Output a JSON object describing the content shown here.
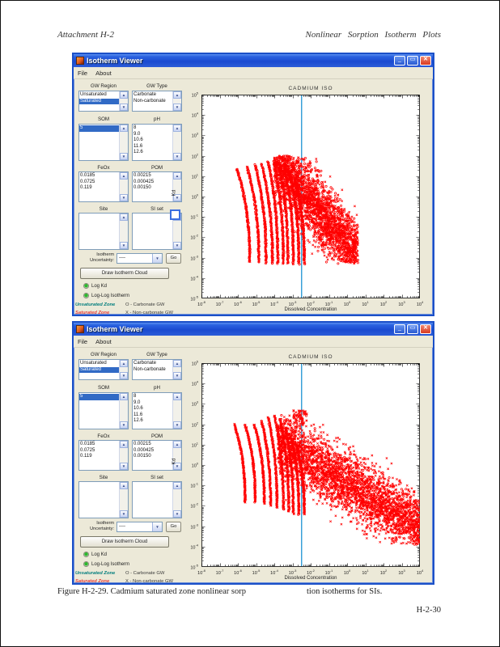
{
  "page": {
    "header_left": "Attachment H-2",
    "header_right": "Nonlinear Sorption Isotherm Plots",
    "caption_left": "Figure H-2-29. Cadmium saturated zone nonlinear sorp",
    "caption_right": "tion isotherms for SIs.",
    "page_number": "H-2-30"
  },
  "window": {
    "title": "Isotherm Viewer",
    "menu": [
      "File",
      "About"
    ],
    "icons": {
      "minimize": "_",
      "maximize": "▭",
      "close": "✕",
      "scroll_up": "▲",
      "scroll_down": "▼",
      "dropdown_arrow": "▼"
    },
    "panel": {
      "gw_region": {
        "label": "GW Region",
        "items": [
          "Unsaturated",
          "Saturated"
        ],
        "selected": "Saturated"
      },
      "gw_type": {
        "label": "GW Type",
        "items": [
          "Carbonate",
          "Non-carbonate"
        ]
      },
      "som": {
        "label": "SOM",
        "items": [
          "5"
        ],
        "selected": "5"
      },
      "ph": {
        "label": "pH",
        "items": [
          "8",
          "9.0",
          "10.6",
          "11.6",
          "12.6"
        ]
      },
      "feox": {
        "label": "FeOx",
        "items": [
          "0.0185",
          "0.0725",
          "0.119"
        ]
      },
      "pom": {
        "label": "POM",
        "items": [
          "0.00215",
          "0.000425",
          "0.00150"
        ]
      },
      "site": {
        "label": "Site",
        "items": []
      },
      "si_set": {
        "label": "SI set",
        "items": []
      },
      "uncertainty_label_line1": "Isotherm",
      "uncertainty_label_line2": "Uncertainty:",
      "uncertainty_value": "----",
      "go_button": "Go",
      "draw_button": "Draw Isotherm Cloud",
      "radio1": "Log Kd",
      "radio2": "Log-Log Isotherm",
      "legend": [
        {
          "text": "Unsaturated Zone",
          "color": "#007d7d",
          "marker": "O - Carbonate GW"
        },
        {
          "text": "Saturated Zone",
          "color": "#e5413e",
          "marker": "X - Non-carbonate GW"
        }
      ]
    }
  },
  "chart_data": [
    {
      "type": "scatter",
      "title": "CADMIUM ISO",
      "xlabel": "Dissolved Concentration",
      "ylabel": "Kd",
      "axis_scale": "log-log",
      "x_log_range": [
        -8,
        4
      ],
      "y_log_range": [
        -5,
        5
      ],
      "grid": false,
      "vline_log_x": -2.5,
      "vline_color": "#2e9bd6",
      "marker_color": "#ff0000",
      "o_fraction": 0.5,
      "strands": [
        {
          "x": -6.05,
          "y_top": 1.35,
          "y_end": -3.2,
          "dx": 0.7
        },
        {
          "x": -5.5,
          "y_top": 1.45,
          "y_end": -3.2,
          "dx": 0.65
        },
        {
          "x": -5.05,
          "y_top": 1.55,
          "y_end": -3.25,
          "dx": 0.6
        },
        {
          "x": -4.7,
          "y_top": 1.6,
          "y_end": -3.3,
          "dx": 0.6
        },
        {
          "x": -4.35,
          "y_top": 1.7,
          "y_end": -3.3,
          "dx": 0.55
        },
        {
          "x": -4.05,
          "y_top": 1.75,
          "y_end": -3.3,
          "dx": 0.55
        },
        {
          "x": -3.75,
          "y_top": 1.65,
          "y_end": -3.3,
          "dx": 0.5
        },
        {
          "x": -3.45,
          "y_top": 1.45,
          "y_end": -3.3,
          "dx": 0.5
        },
        {
          "x": -3.15,
          "y_top": 1.15,
          "y_end": -3.3,
          "dx": 0.5
        },
        {
          "x": -2.85,
          "y_top": 0.85,
          "y_end": -3.3,
          "dx": 0.5
        }
      ],
      "clouds": [
        {
          "x_min": -4.0,
          "x_max": 0.6,
          "slope": -1.05,
          "intercept": -2.3,
          "spread": 0.85,
          "n": 2600,
          "y_clip": [
            -3.3,
            2.0
          ]
        }
      ]
    },
    {
      "type": "scatter",
      "title": "CADMIUM ISO",
      "xlabel": "Dissolved Concentration",
      "ylabel": "Kd",
      "axis_scale": "log-log",
      "x_log_range": [
        -8,
        4
      ],
      "y_log_range": [
        -5,
        5
      ],
      "grid": false,
      "vline_log_x": -2.5,
      "vline_color": "#2e9bd6",
      "marker_color": "#ff0000",
      "o_fraction": 0.12,
      "strands": [
        {
          "x": -6.2,
          "y_top": 2.0,
          "y_end": -1.8,
          "dx": 0.6
        },
        {
          "x": -5.6,
          "y_top": 1.95,
          "y_end": -1.8,
          "dx": 0.55
        },
        {
          "x": -5.1,
          "y_top": 2.0,
          "y_end": -1.9,
          "dx": 0.55
        },
        {
          "x": -4.7,
          "y_top": 2.15,
          "y_end": -2.0,
          "dx": 0.5
        },
        {
          "x": -4.35,
          "y_top": 2.35,
          "y_end": -2.1,
          "dx": 0.5
        },
        {
          "x": -4.0,
          "y_top": 2.45,
          "y_end": -2.2,
          "dx": 0.5
        },
        {
          "x": -3.7,
          "y_top": 2.25,
          "y_end": -2.3,
          "dx": 0.5
        },
        {
          "x": -3.4,
          "y_top": 1.85,
          "y_end": -2.4,
          "dx": 0.45
        },
        {
          "x": -3.1,
          "y_top": 1.45,
          "y_end": -2.4,
          "dx": 0.45
        },
        {
          "x": -2.8,
          "y_top": 1.05,
          "y_end": -2.4,
          "dx": 0.45
        }
      ],
      "clouds": [
        {
          "x_min": -3.8,
          "x_max": 4.0,
          "slope": -0.55,
          "intercept": -0.9,
          "spread": 0.75,
          "n": 3200,
          "y_clip": [
            -3.9,
            2.5
          ]
        },
        {
          "x_min": -2.95,
          "x_max": -2.2,
          "slope": 0,
          "intercept": 2.3,
          "spread": 0.22,
          "n": 70,
          "y_clip": [
            1.8,
            2.7
          ]
        }
      ]
    }
  ]
}
